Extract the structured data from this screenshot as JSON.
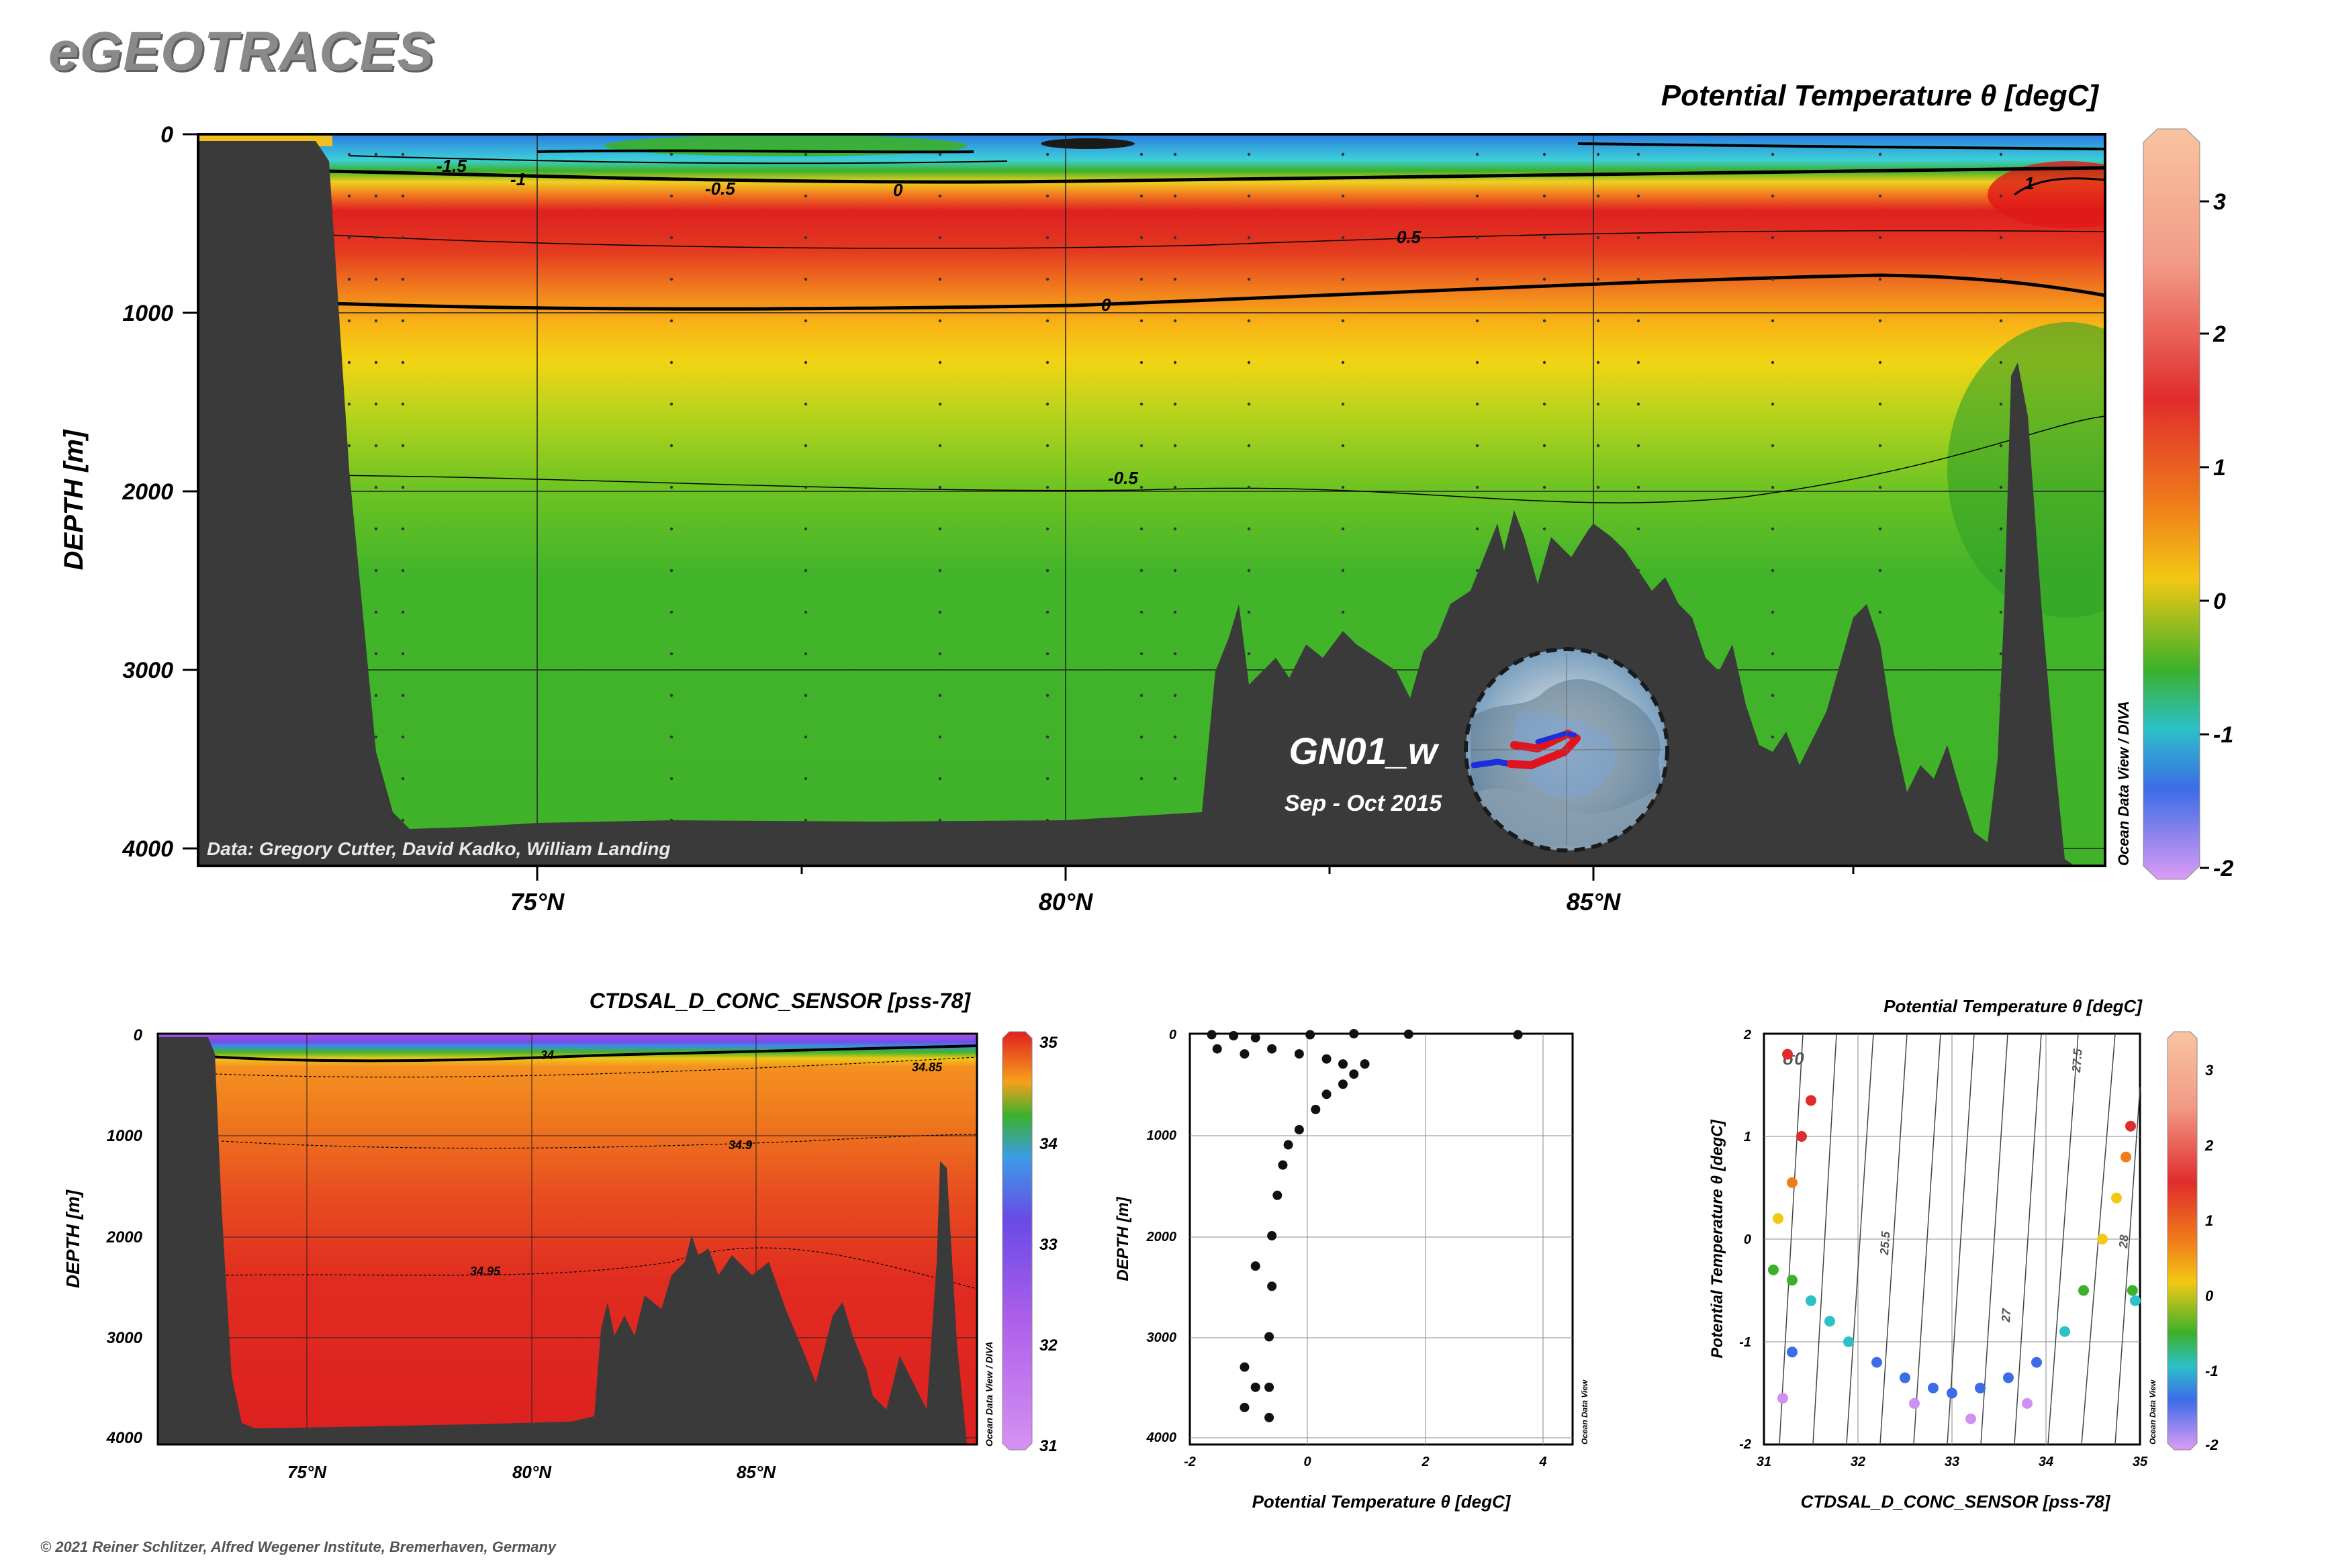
{
  "brand": "eGEOTRACES",
  "copyright": "© 2021 Reiner Schlitzer, Alfred Wegener Institute, Bremerhaven, Germany",
  "main_section": {
    "title": "Potential Temperature θ [degC]",
    "ylabel": "DEPTH [m]",
    "y_ticks": [
      "0",
      "1000",
      "2000",
      "3000",
      "4000"
    ],
    "x_ticks": [
      "75°N",
      "80°N",
      "85°N"
    ],
    "credit": "Data: Gregory Cutter, David Kadko, William Landing",
    "odv_label": "Ocean Data View / DIVA",
    "cruise": "GN01_w",
    "period": "Sep - Oct 2015",
    "colorbar_ticks": [
      "3",
      "2",
      "1",
      "0",
      "-1",
      "-2"
    ],
    "contour_labels": [
      "-1.5",
      "-1",
      "-0.5",
      "0",
      "0.5",
      "1",
      "0",
      "-0.5"
    ]
  },
  "salinity_section": {
    "title": "CTDSAL_D_CONC_SENSOR [pss-78]",
    "ylabel": "DEPTH [m]",
    "y_ticks": [
      "0",
      "1000",
      "2000",
      "3000",
      "4000"
    ],
    "x_ticks": [
      "75°N",
      "80°N",
      "85°N"
    ],
    "odv_label": "Ocean Data View / DIVA",
    "colorbar_ticks": [
      "35",
      "34",
      "33",
      "32",
      "31"
    ],
    "contour_labels": [
      "34",
      "34.85",
      "34.9",
      "34.95"
    ]
  },
  "profile": {
    "xlabel": "Potential Temperature θ [degC]",
    "ylabel": "DEPTH [m]",
    "x_ticks": [
      "-2",
      "0",
      "2",
      "4"
    ],
    "y_ticks": [
      "0",
      "1000",
      "2000",
      "3000",
      "4000"
    ],
    "odv_label": "Ocean Data View"
  },
  "ts_plot": {
    "title": "Potential Temperature θ [degC]",
    "xlabel": "CTDSAL_D_CONC_SENSOR [pss-78]",
    "ylabel": "Potential Temperature θ [degC]",
    "x_ticks": [
      "31",
      "32",
      "33",
      "34",
      "35"
    ],
    "y_ticks": [
      "2",
      "1",
      "0",
      "-1",
      "-2"
    ],
    "sigma_label": "σ0",
    "density_labels": [
      "25.5",
      "27",
      "27.5",
      "28"
    ],
    "odv_label": "Ocean Data View",
    "colorbar_ticks": [
      "3",
      "2",
      "1",
      "0",
      "-1",
      "-2"
    ]
  },
  "colors": {
    "seafloor": "#3a3a3a",
    "warm_red": "#e02020",
    "deep_green": "#3cb02a",
    "cold_blue": "#3c8ce6",
    "colorbar_top": "#f9b98e",
    "colorbar_bottom": "#d694f2"
  },
  "chart_data": [
    {
      "type": "heatmap",
      "name": "temperature_section",
      "x_axis": "latitude (°N)",
      "xlim": [
        71.5,
        89.8
      ],
      "y_axis": "depth (m)",
      "ylim": [
        4000,
        0
      ],
      "value_range": [
        -2,
        3.5
      ],
      "depth_profile_mean_theta": [
        {
          "depth": 0,
          "theta": -1.6
        },
        {
          "depth": 50,
          "theta": -1.5
        },
        {
          "depth": 150,
          "theta": -0.5
        },
        {
          "depth": 250,
          "theta": 0.6
        },
        {
          "depth": 400,
          "theta": 1.0
        },
        {
          "depth": 600,
          "theta": 0.5
        },
        {
          "depth": 950,
          "theta": 0.0
        },
        {
          "depth": 2000,
          "theta": -0.5
        },
        {
          "depth": 4000,
          "theta": -0.6
        }
      ],
      "seafloor_depth": [
        {
          "lat": 71.5,
          "depth": 0
        },
        {
          "lat": 72.9,
          "depth": 0
        },
        {
          "lat": 73.2,
          "depth": 100
        },
        {
          "lat": 73.6,
          "depth": 3400
        },
        {
          "lat": 74.0,
          "depth": 3800
        },
        {
          "lat": 75.0,
          "depth": 3850
        },
        {
          "lat": 77.0,
          "depth": 3830
        },
        {
          "lat": 79.0,
          "depth": 3850
        },
        {
          "lat": 81.0,
          "depth": 3800
        },
        {
          "lat": 81.4,
          "depth": 3050
        },
        {
          "lat": 81.8,
          "depth": 2850
        },
        {
          "lat": 82.3,
          "depth": 3150
        },
        {
          "lat": 82.8,
          "depth": 2800
        },
        {
          "lat": 83.5,
          "depth": 2900
        },
        {
          "lat": 84.2,
          "depth": 2400
        },
        {
          "lat": 84.6,
          "depth": 2180
        },
        {
          "lat": 85.0,
          "depth": 2250
        },
        {
          "lat": 85.6,
          "depth": 2700
        },
        {
          "lat": 86.2,
          "depth": 3000
        },
        {
          "lat": 86.8,
          "depth": 3450
        },
        {
          "lat": 87.4,
          "depth": 2650
        },
        {
          "lat": 87.9,
          "depth": 3600
        },
        {
          "lat": 88.3,
          "depth": 3800
        },
        {
          "lat": 88.9,
          "depth": 1300
        },
        {
          "lat": 89.3,
          "depth": 3900
        },
        {
          "lat": 89.8,
          "depth": 4000
        }
      ]
    },
    {
      "type": "heatmap",
      "name": "salinity_section",
      "x_axis": "latitude (°N)",
      "xlim": [
        71.5,
        89.8
      ],
      "y_axis": "depth (m)",
      "ylim": [
        4000,
        0
      ],
      "value_range": [
        31,
        35
      ],
      "depth_profile_mean_salinity": [
        {
          "depth": 0,
          "sal": 31.5
        },
        {
          "depth": 50,
          "sal": 33.5
        },
        {
          "depth": 150,
          "sal": 34.7
        },
        {
          "depth": 400,
          "sal": 34.85
        },
        {
          "depth": 1000,
          "sal": 34.9
        },
        {
          "depth": 2000,
          "sal": 34.95
        },
        {
          "depth": 4000,
          "sal": 34.95
        }
      ]
    },
    {
      "type": "scatter",
      "name": "theta_depth_profile",
      "xlim": [
        -2,
        5
      ],
      "ylim": [
        4000,
        0
      ],
      "points": [
        {
          "x": -1.6,
          "y": 10
        },
        {
          "x": -1.2,
          "y": 20
        },
        {
          "x": -0.8,
          "y": 40
        },
        {
          "x": 0.2,
          "y": 10
        },
        {
          "x": 1.0,
          "y": 0
        },
        {
          "x": 2.0,
          "y": 5
        },
        {
          "x": 4.0,
          "y": 10
        },
        {
          "x": -1.5,
          "y": 150
        },
        {
          "x": -1.0,
          "y": 200
        },
        {
          "x": -0.5,
          "y": 150
        },
        {
          "x": 0.0,
          "y": 200
        },
        {
          "x": 0.5,
          "y": 250
        },
        {
          "x": 0.8,
          "y": 300
        },
        {
          "x": 1.2,
          "y": 300
        },
        {
          "x": 1.0,
          "y": 400
        },
        {
          "x": 0.8,
          "y": 500
        },
        {
          "x": 0.5,
          "y": 600
        },
        {
          "x": 0.3,
          "y": 750
        },
        {
          "x": 0.0,
          "y": 950
        },
        {
          "x": -0.2,
          "y": 1100
        },
        {
          "x": -0.3,
          "y": 1300
        },
        {
          "x": -0.4,
          "y": 1600
        },
        {
          "x": -0.5,
          "y": 2000
        },
        {
          "x": -0.5,
          "y": 2500
        },
        {
          "x": -0.55,
          "y": 3000
        },
        {
          "x": -0.55,
          "y": 3500
        },
        {
          "x": -0.55,
          "y": 3800
        },
        {
          "x": -0.8,
          "y": 2300
        },
        {
          "x": -1.0,
          "y": 3300
        },
        {
          "x": -0.8,
          "y": 3500
        },
        {
          "x": -1.0,
          "y": 3700
        }
      ]
    },
    {
      "type": "scatter",
      "name": "theta_salinity",
      "xlim": [
        31,
        35
      ],
      "ylim": [
        -2,
        2
      ],
      "points": [
        {
          "x": 31.25,
          "y": 1.8
        },
        {
          "x": 31.5,
          "y": 1.35
        },
        {
          "x": 31.4,
          "y": 1.0
        },
        {
          "x": 31.3,
          "y": 0.55
        },
        {
          "x": 31.15,
          "y": 0.2
        },
        {
          "x": 31.1,
          "y": -0.3
        },
        {
          "x": 31.3,
          "y": -0.4
        },
        {
          "x": 31.5,
          "y": -0.6
        },
        {
          "x": 31.7,
          "y": -0.8
        },
        {
          "x": 31.3,
          "y": -1.1
        },
        {
          "x": 31.9,
          "y": -1.0
        },
        {
          "x": 32.2,
          "y": -1.2
        },
        {
          "x": 32.5,
          "y": -1.35
        },
        {
          "x": 32.8,
          "y": -1.45
        },
        {
          "x": 33.0,
          "y": -1.5
        },
        {
          "x": 33.3,
          "y": -1.45
        },
        {
          "x": 33.6,
          "y": -1.35
        },
        {
          "x": 33.9,
          "y": -1.2
        },
        {
          "x": 34.2,
          "y": -0.9
        },
        {
          "x": 34.4,
          "y": -0.5
        },
        {
          "x": 34.6,
          "y": 0.0
        },
        {
          "x": 34.75,
          "y": 0.4
        },
        {
          "x": 34.85,
          "y": 0.8
        },
        {
          "x": 34.9,
          "y": 1.1
        },
        {
          "x": 34.92,
          "y": -0.5
        },
        {
          "x": 34.95,
          "y": -0.6
        },
        {
          "x": 32.6,
          "y": -1.6
        },
        {
          "x": 33.2,
          "y": -1.75
        },
        {
          "x": 31.2,
          "y": -1.55
        },
        {
          "x": 33.8,
          "y": -1.6
        }
      ]
    }
  ]
}
